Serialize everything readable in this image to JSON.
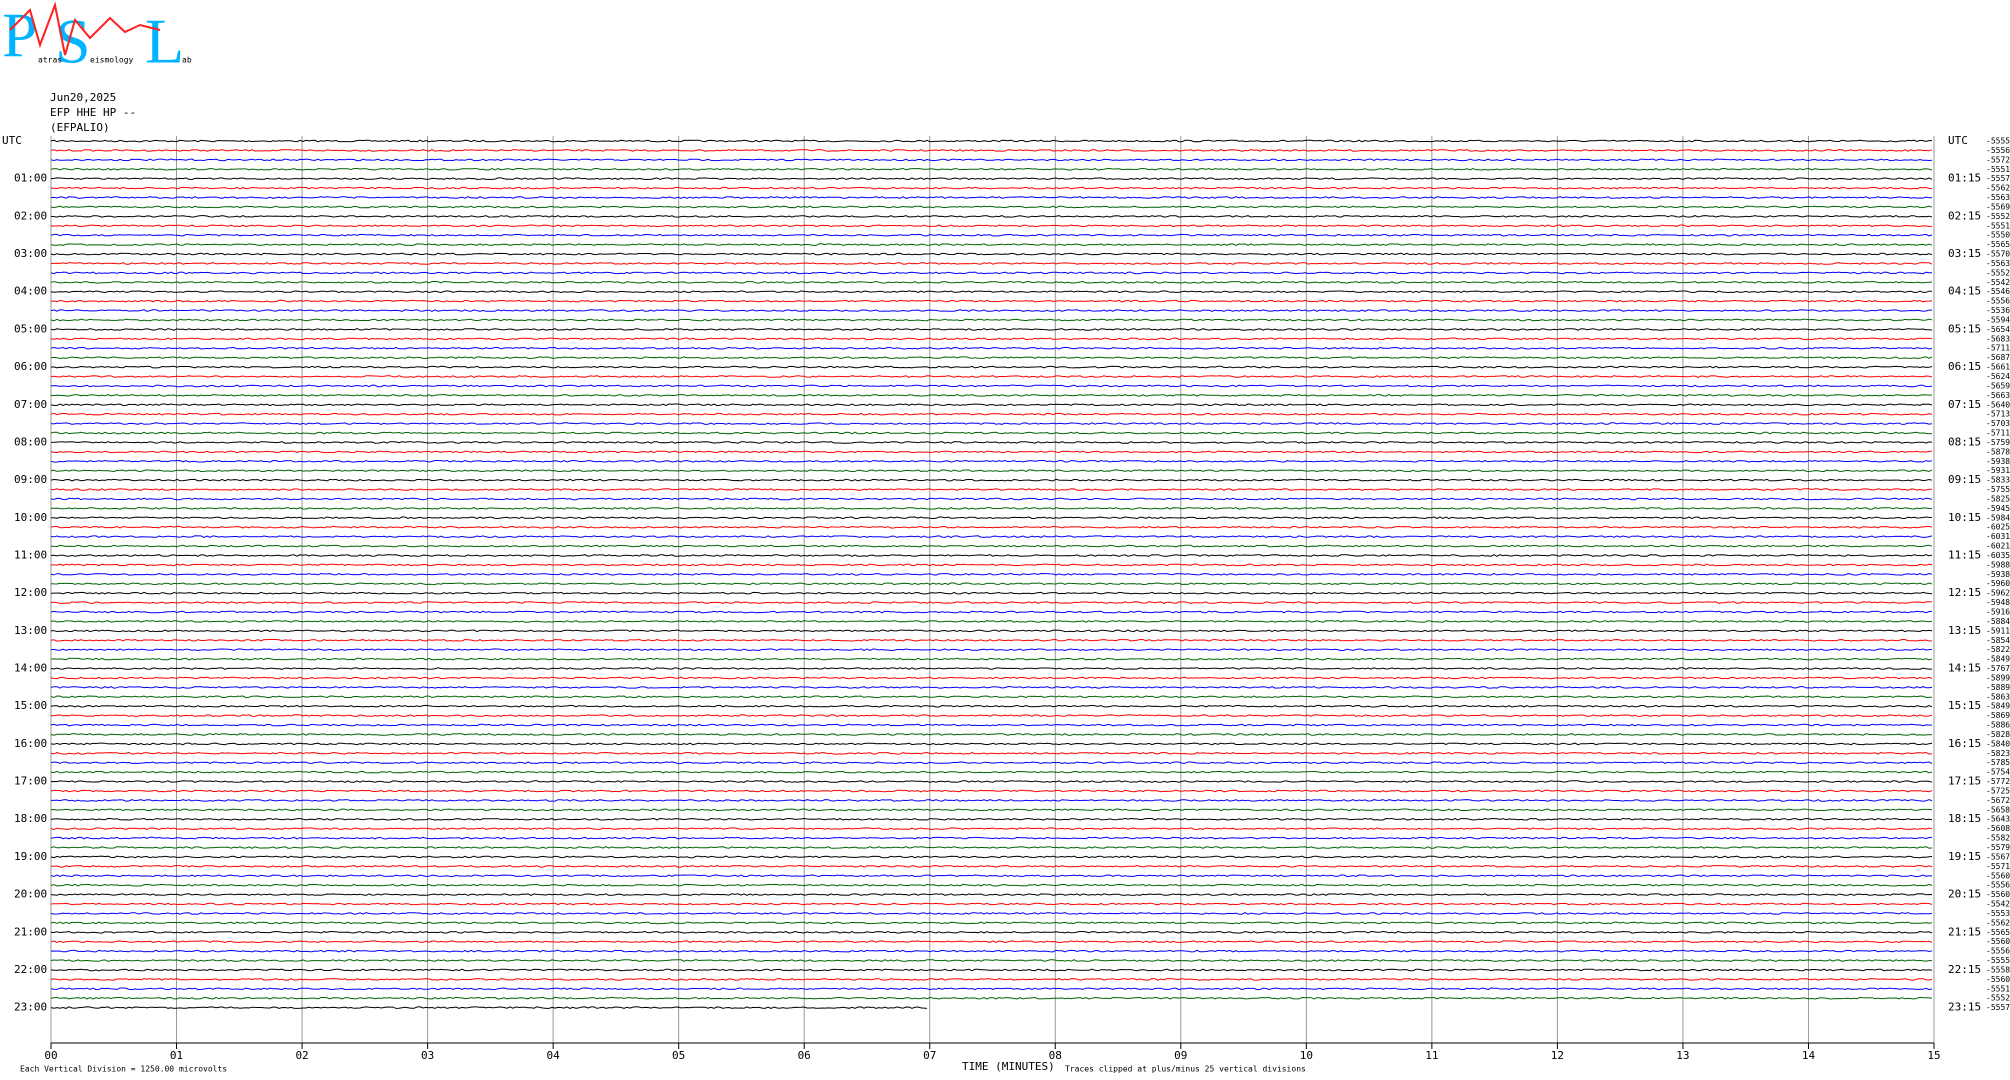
{
  "chart_data": {
    "type": "helicorder",
    "logo": [
      "P",
      "S",
      "L"
    ],
    "logo_sub": [
      "atras",
      "eismology",
      "ab"
    ],
    "date": "Jun20,2025",
    "channel": "EFP HHE HP --",
    "station": "(EFPALIO)",
    "left_labels": [
      "UTC",
      "01:00",
      "02:00",
      "03:00",
      "04:00",
      "05:00",
      "06:00",
      "07:00",
      "08:00",
      "09:00",
      "10:00",
      "11:00",
      "12:00",
      "13:00",
      "14:00",
      "15:00",
      "16:00",
      "17:00",
      "18:00",
      "19:00",
      "20:00",
      "21:00",
      "22:00",
      "23:00"
    ],
    "right_labels": [
      "UTC",
      "01:15",
      "02:15",
      "03:15",
      "04:15",
      "05:15",
      "06:15",
      "07:15",
      "08:15",
      "09:15",
      "10:15",
      "11:15",
      "12:15",
      "13:15",
      "14:15",
      "15:15",
      "16:15",
      "17:15",
      "18:15",
      "19:15",
      "20:15",
      "21:15",
      "22:15",
      "23:15"
    ],
    "offsets": [
      -5555,
      -5556,
      -5572,
      -5551,
      -5557,
      -5562,
      -5563,
      -5569,
      -5552,
      -5551,
      -5550,
      -5565,
      -5570,
      -5563,
      -5552,
      -5542,
      -5546,
      -5556,
      -5536,
      -5594,
      -5654,
      -5683,
      -5711,
      -5687,
      -5661,
      -5624,
      -5659,
      -5663,
      -5640,
      -5713,
      -5703,
      -5711,
      -5759,
      -5878,
      -5938,
      -5931,
      -5833,
      -5755,
      -5825,
      -5945,
      -5984,
      -6025,
      -6031,
      -6021,
      -6035,
      -5988,
      -5938,
      -5960,
      -5962,
      -5948,
      -5916,
      -5884,
      -5911,
      -5854,
      -5822,
      -5849,
      -5767,
      -5899,
      -5889,
      -5863,
      -5849,
      -5869,
      -5886,
      -5828,
      -5840,
      -5823,
      -5785,
      -5754,
      -5772,
      -5725,
      -5672,
      -5658,
      -5643,
      -5608,
      -5582,
      -5579,
      -5567,
      -5571,
      -5560,
      -5556,
      -5560,
      -5542,
      -5553,
      -5562,
      -5565,
      -5560,
      -5556,
      -5555,
      -5558,
      -5560,
      -5551,
      -5552,
      -5557
    ],
    "trace_colors": [
      "#000000",
      "#ff0000",
      "#0000ff",
      "#006400"
    ],
    "last_trace_end": 7,
    "xlim": [
      0,
      15
    ],
    "xticks": [
      {
        "value": 0,
        "label": "00"
      },
      {
        "value": 1,
        "label": "01"
      },
      {
        "value": 2,
        "label": "02"
      },
      {
        "value": 3,
        "label": "03"
      },
      {
        "value": 4,
        "label": "04"
      },
      {
        "value": 5,
        "label": "05"
      },
      {
        "value": 6,
        "label": "06"
      },
      {
        "value": 7,
        "label": "07"
      },
      {
        "value": 8,
        "label": "08"
      },
      {
        "value": 9,
        "label": "09"
      },
      {
        "value": 10,
        "label": "10"
      },
      {
        "value": 11,
        "label": "11"
      },
      {
        "value": 12,
        "label": "12"
      },
      {
        "value": 13,
        "label": "13"
      },
      {
        "value": 14,
        "label": "14"
      },
      {
        "value": 15,
        "label": "15"
      }
    ],
    "xlabel": "TIME (MINUTES)",
    "scale_note": "Each Vertical Division = 1250.00 microvolts",
    "clip_note": "Traces clipped at plus/minus 25 vertical divisions"
  }
}
